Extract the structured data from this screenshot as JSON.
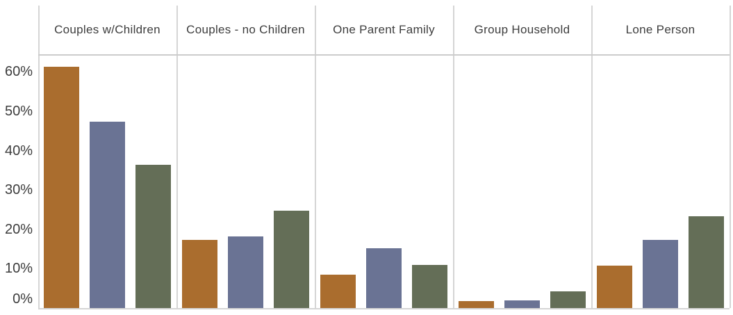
{
  "chart_data": {
    "type": "bar",
    "title": "",
    "categories": [
      "Couples w/Children",
      "Couples - no Children",
      "One Parent Family",
      "Group Household",
      "Lone Person"
    ],
    "series": [
      {
        "name": "series-1-orange",
        "color": "#aa6d2e",
        "values": [
          61.3,
          17.3,
          8.5,
          1.7,
          10.8
        ]
      },
      {
        "name": "series-2-blue",
        "color": "#6a7394",
        "values": [
          47.3,
          18.2,
          15.2,
          2.0,
          17.3
        ]
      },
      {
        "name": "series-3-green",
        "color": "#646e57",
        "values": [
          36.4,
          24.7,
          11.0,
          4.2,
          23.4
        ]
      }
    ],
    "yticks": [
      {
        "value": 60,
        "label": "60%"
      },
      {
        "value": 50,
        "label": "50%"
      },
      {
        "value": 40,
        "label": "40%"
      },
      {
        "value": 30,
        "label": "30%"
      },
      {
        "value": 20,
        "label": "20%"
      },
      {
        "value": 10,
        "label": "10%"
      },
      {
        "value": 0,
        "label": "0%"
      }
    ],
    "ylim": [
      0,
      64.5
    ],
    "xlabel": "",
    "ylabel": "",
    "value_format": "percent",
    "legend": "none",
    "grid": "vertical-category-separators-only"
  },
  "colors": {
    "background": "#ffffff",
    "separator_line": "#d5d5d5",
    "header_underline": "#cccccc",
    "baseline": "#d5d5d5",
    "text": "#3d3d3d"
  }
}
